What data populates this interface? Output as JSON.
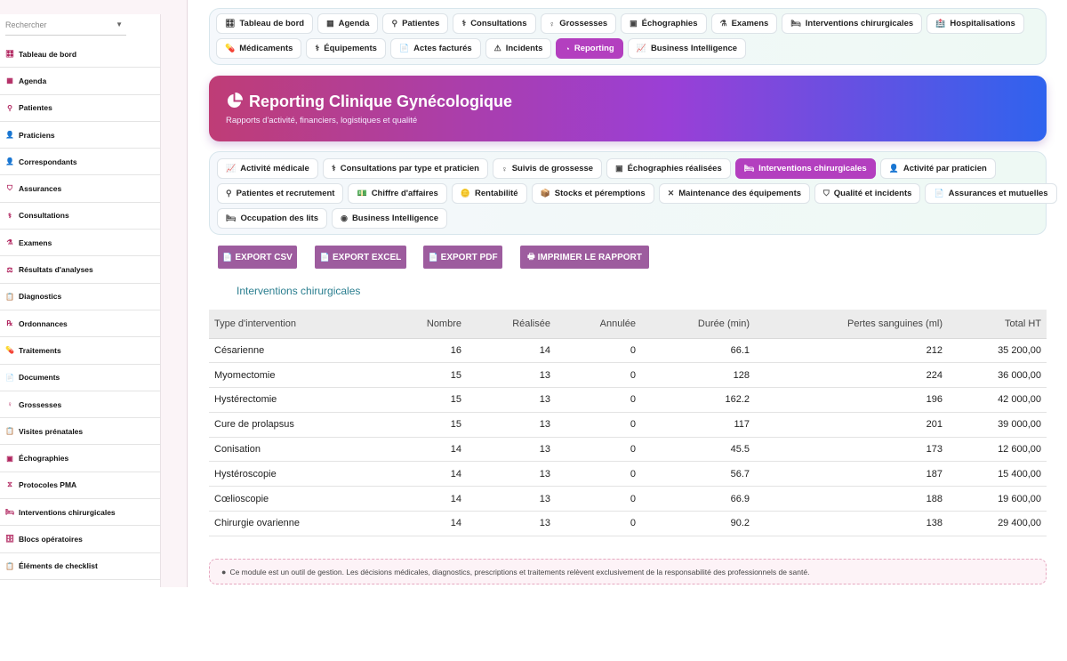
{
  "sidebar": {
    "search_placeholder": "Rechercher",
    "items": [
      {
        "label": "Tableau de bord",
        "icon": "🎛"
      },
      {
        "label": "Agenda",
        "icon": "▦"
      },
      {
        "label": "Patientes",
        "icon": "⚲"
      },
      {
        "label": "Praticiens",
        "icon": "👤"
      },
      {
        "label": "Correspondants",
        "icon": "👤"
      },
      {
        "label": "Assurances",
        "icon": "⛉"
      },
      {
        "label": "Consultations",
        "icon": "⚕"
      },
      {
        "label": "Examens",
        "icon": "⚗"
      },
      {
        "label": "Résultats d'analyses",
        "icon": "⚖"
      },
      {
        "label": "Diagnostics",
        "icon": "📋"
      },
      {
        "label": "Ordonnances",
        "icon": "℞"
      },
      {
        "label": "Traitements",
        "icon": "💊"
      },
      {
        "label": "Documents",
        "icon": "📄"
      },
      {
        "label": "Grossesses",
        "icon": "♀"
      },
      {
        "label": "Visites prénatales",
        "icon": "📋"
      },
      {
        "label": "Échographies",
        "icon": "▣"
      },
      {
        "label": "Protocoles PMA",
        "icon": "⧖"
      },
      {
        "label": "Interventions chirurgicales",
        "icon": "🛏"
      },
      {
        "label": "Blocs opératoires",
        "icon": "🗄"
      },
      {
        "label": "Éléments de checklist",
        "icon": "📋"
      }
    ]
  },
  "topnav": {
    "row1": [
      {
        "label": "Tableau de bord",
        "icon": "🎛",
        "active": false
      },
      {
        "label": "Agenda",
        "icon": "▦",
        "active": false
      },
      {
        "label": "Patientes",
        "icon": "⚲",
        "active": false
      },
      {
        "label": "Consultations",
        "icon": "⚕",
        "active": false
      },
      {
        "label": "Grossesses",
        "icon": "♀",
        "active": false
      },
      {
        "label": "Échographies",
        "icon": "▣",
        "active": false
      },
      {
        "label": "Examens",
        "icon": "⚗",
        "active": false
      },
      {
        "label": "Interventions chirurgicales",
        "icon": "🛏",
        "active": false
      },
      {
        "label": "Hospitalisations",
        "icon": "🏥",
        "active": false
      }
    ],
    "row2": [
      {
        "label": "Médicaments",
        "icon": "💊",
        "active": false
      },
      {
        "label": "Équipements",
        "icon": "⚕",
        "active": false
      },
      {
        "label": "Actes facturés",
        "icon": "📄",
        "active": false
      },
      {
        "label": "Incidents",
        "icon": "⚠",
        "active": false
      },
      {
        "label": "Reporting",
        "icon": "◔",
        "active": true
      },
      {
        "label": "Business Intelligence",
        "icon": "📈",
        "active": false
      }
    ]
  },
  "hero": {
    "title": "Reporting Clinique Gynécologique",
    "subtitle": "Rapports d'activité, financiers, logistiques et qualité"
  },
  "subnav": {
    "row1": [
      {
        "label": "Activité médicale",
        "icon": "📈",
        "active": false
      },
      {
        "label": "Consultations par type et praticien",
        "icon": "⚕",
        "active": false
      },
      {
        "label": "Suivis de grossesse",
        "icon": "♀",
        "active": false
      },
      {
        "label": "Échographies réalisées",
        "icon": "▣",
        "active": false
      },
      {
        "label": "Interventions chirurgicales",
        "icon": "🛏",
        "active": true
      },
      {
        "label": "Activité par praticien",
        "icon": "👤",
        "active": false
      }
    ],
    "row2": [
      {
        "label": "Patientes et recrutement",
        "icon": "⚲",
        "active": false
      },
      {
        "label": "Chiffre d'affaires",
        "icon": "💵",
        "active": false
      },
      {
        "label": "Rentabilité",
        "icon": "🪙",
        "active": false
      },
      {
        "label": "Stocks et péremptions",
        "icon": "📦",
        "active": false
      },
      {
        "label": "Maintenance des équipements",
        "icon": "✕",
        "active": false
      },
      {
        "label": "Qualité et incidents",
        "icon": "⛉",
        "active": false
      },
      {
        "label": "Assurances et mutuelles",
        "icon": "📄",
        "active": false
      }
    ],
    "row3": [
      {
        "label": "Occupation des lits",
        "icon": "🛏",
        "active": false
      },
      {
        "label": "Business Intelligence",
        "icon": "◉",
        "active": false
      }
    ]
  },
  "exports": {
    "csv": "EXPORT CSV",
    "excel": "EXPORT EXCEL",
    "pdf": "EXPORT PDF",
    "print": "IMPRIMER LE RAPPORT"
  },
  "section_title": "Interventions chirurgicales",
  "table": {
    "headers": [
      "Type d'intervention",
      "Nombre",
      "Réalisée",
      "Annulée",
      "Durée (min)",
      "Pertes sanguines (ml)",
      "Total HT"
    ],
    "rows": [
      [
        "Césarienne",
        "16",
        "14",
        "0",
        "66.1",
        "212",
        "35 200,00"
      ],
      [
        "Myomectomie",
        "15",
        "13",
        "0",
        "128",
        "224",
        "36 000,00"
      ],
      [
        "Hystérectomie",
        "15",
        "13",
        "0",
        "162.2",
        "196",
        "42 000,00"
      ],
      [
        "Cure de prolapsus",
        "15",
        "13",
        "0",
        "117",
        "201",
        "39 000,00"
      ],
      [
        "Conisation",
        "14",
        "13",
        "0",
        "45.5",
        "173",
        "12 600,00"
      ],
      [
        "Hystéroscopie",
        "14",
        "13",
        "0",
        "56.7",
        "187",
        "15 400,00"
      ],
      [
        "Cœlioscopie",
        "14",
        "13",
        "0",
        "66.9",
        "188",
        "19 600,00"
      ],
      [
        "Chirurgie ovarienne",
        "14",
        "13",
        "0",
        "90.2",
        "138",
        "29 400,00"
      ]
    ]
  },
  "disclaimer": "Ce module est un outil de gestion. Les décisions médicales, diagnostics, prescriptions et traitements relèvent exclusivement de la responsabilité des professionnels de santé."
}
